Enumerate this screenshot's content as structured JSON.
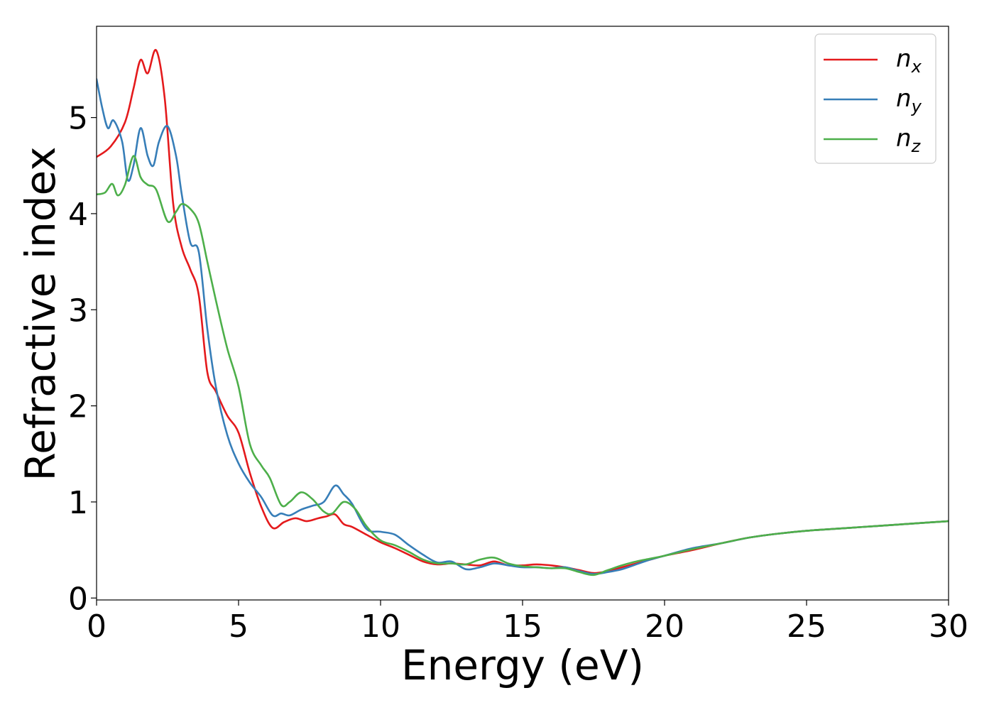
{
  "chart_data": {
    "type": "line",
    "xlabel": "Energy (eV)",
    "ylabel": "Refractive index",
    "xlim": [
      0,
      30
    ],
    "ylim": [
      -0.02,
      5.95
    ],
    "xticks": [
      "0",
      "5",
      "10",
      "15",
      "20",
      "25",
      "30"
    ],
    "yticks": [
      "0",
      "1",
      "2",
      "3",
      "4",
      "5"
    ],
    "grid": false,
    "legend_position": "top-right",
    "series": [
      {
        "name": "n",
        "subscript": "x",
        "color": "#e41a1c",
        "x": [
          0,
          0.5,
          1.0,
          1.3,
          1.55,
          1.8,
          2.1,
          2.4,
          2.7,
          3.0,
          3.3,
          3.6,
          3.9,
          4.2,
          4.6,
          5.0,
          5.4,
          5.8,
          6.2,
          6.6,
          7.0,
          7.4,
          7.8,
          8.1,
          8.4,
          8.7,
          9.0,
          9.5,
          10.0,
          10.5,
          11.0,
          11.5,
          12.0,
          12.5,
          13.0,
          13.5,
          14.0,
          14.5,
          15.0,
          15.5,
          16.0,
          16.5,
          17.0,
          17.5,
          18.0,
          18.5,
          19.0,
          19.5,
          20.0,
          21.0,
          22.0,
          23.0,
          24.0,
          25.0,
          26.0,
          27.0,
          28.0,
          29.0,
          30.0
        ],
        "y": [
          4.59,
          4.7,
          4.95,
          5.3,
          5.6,
          5.46,
          5.7,
          5.2,
          4.1,
          3.65,
          3.42,
          3.15,
          2.35,
          2.15,
          1.9,
          1.72,
          1.3,
          0.95,
          0.73,
          0.79,
          0.83,
          0.8,
          0.83,
          0.85,
          0.87,
          0.77,
          0.74,
          0.66,
          0.58,
          0.52,
          0.45,
          0.38,
          0.35,
          0.36,
          0.35,
          0.34,
          0.38,
          0.34,
          0.34,
          0.35,
          0.34,
          0.32,
          0.29,
          0.26,
          0.28,
          0.32,
          0.36,
          0.4,
          0.44,
          0.5,
          0.57,
          0.63,
          0.67,
          0.7,
          0.72,
          0.74,
          0.76,
          0.78,
          0.8
        ]
      },
      {
        "name": "n",
        "subscript": "y",
        "color": "#377eb8",
        "x": [
          0,
          0.2,
          0.4,
          0.6,
          0.9,
          1.1,
          1.3,
          1.55,
          1.8,
          2.0,
          2.2,
          2.5,
          2.8,
          3.0,
          3.3,
          3.6,
          3.9,
          4.2,
          4.6,
          5.0,
          5.4,
          5.8,
          6.2,
          6.5,
          6.8,
          7.2,
          7.6,
          8.0,
          8.4,
          8.7,
          9.0,
          9.5,
          10.0,
          10.5,
          11.0,
          11.5,
          12.0,
          12.5,
          13.0,
          13.5,
          14.0,
          14.5,
          15.0,
          15.5,
          16.0,
          16.5,
          17.0,
          17.5,
          18.0,
          18.5,
          19.0,
          19.5,
          20.0,
          21.0,
          22.0,
          23.0,
          24.0,
          25.0,
          26.0,
          27.0,
          28.0,
          29.0,
          30.0
        ],
        "y": [
          5.4,
          5.1,
          4.89,
          4.97,
          4.75,
          4.35,
          4.5,
          4.89,
          4.6,
          4.5,
          4.75,
          4.91,
          4.6,
          4.2,
          3.7,
          3.6,
          2.8,
          2.2,
          1.7,
          1.4,
          1.2,
          1.05,
          0.86,
          0.88,
          0.86,
          0.92,
          0.96,
          1.0,
          1.17,
          1.08,
          0.98,
          0.72,
          0.69,
          0.66,
          0.55,
          0.45,
          0.37,
          0.38,
          0.3,
          0.32,
          0.36,
          0.34,
          0.32,
          0.32,
          0.31,
          0.32,
          0.28,
          0.25,
          0.27,
          0.3,
          0.35,
          0.4,
          0.44,
          0.52,
          0.57,
          0.63,
          0.67,
          0.7,
          0.72,
          0.74,
          0.76,
          0.78,
          0.8
        ]
      },
      {
        "name": "n",
        "subscript": "z",
        "color": "#4daf4a",
        "x": [
          0,
          0.3,
          0.55,
          0.75,
          1.0,
          1.3,
          1.55,
          1.8,
          2.1,
          2.5,
          2.8,
          3.0,
          3.3,
          3.6,
          3.9,
          4.2,
          4.6,
          5.0,
          5.4,
          5.8,
          6.1,
          6.5,
          6.8,
          7.2,
          7.6,
          8.0,
          8.3,
          8.7,
          9.1,
          9.5,
          10.0,
          10.5,
          11.0,
          11.5,
          12.0,
          12.5,
          13.0,
          13.5,
          14.0,
          14.5,
          15.0,
          15.5,
          16.0,
          16.5,
          17.0,
          17.5,
          18.0,
          18.5,
          19.0,
          19.5,
          20.0,
          21.0,
          22.0,
          23.0,
          24.0,
          25.0,
          26.0,
          27.0,
          28.0,
          29.0,
          30.0
        ],
        "y": [
          4.2,
          4.22,
          4.31,
          4.19,
          4.3,
          4.6,
          4.38,
          4.3,
          4.25,
          3.92,
          4.02,
          4.1,
          4.05,
          3.9,
          3.5,
          3.1,
          2.6,
          2.2,
          1.6,
          1.38,
          1.25,
          0.97,
          1.0,
          1.1,
          1.03,
          0.9,
          0.88,
          1.0,
          0.93,
          0.75,
          0.6,
          0.55,
          0.48,
          0.4,
          0.36,
          0.36,
          0.35,
          0.4,
          0.42,
          0.36,
          0.33,
          0.32,
          0.31,
          0.31,
          0.27,
          0.24,
          0.29,
          0.34,
          0.38,
          0.41,
          0.44,
          0.51,
          0.57,
          0.63,
          0.67,
          0.7,
          0.72,
          0.74,
          0.76,
          0.78,
          0.8
        ]
      }
    ]
  }
}
